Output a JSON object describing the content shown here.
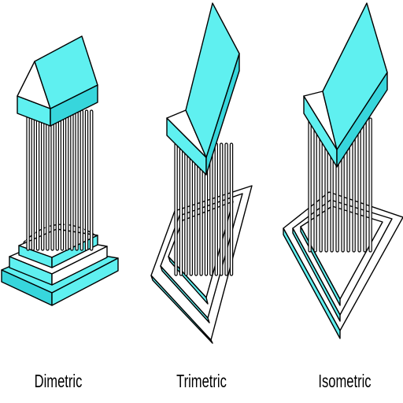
{
  "colors": {
    "fill": "#5ff0f0",
    "shade": "#37d6dc",
    "light": "#a5f8fa",
    "outline": "#000000",
    "background": "#ffffff"
  },
  "figures": [
    {
      "id": "dimetric",
      "label": "Dimetric"
    },
    {
      "id": "trimetric",
      "label": "Trimetric"
    },
    {
      "id": "isometric",
      "label": "Isometric"
    }
  ]
}
